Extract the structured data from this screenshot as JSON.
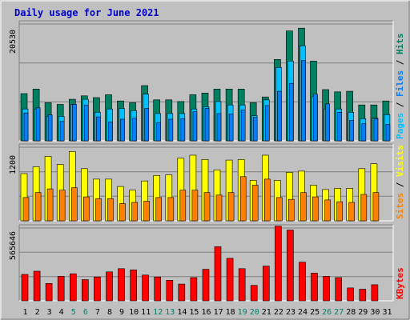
{
  "title": "Daily usage for June 2021",
  "colors": {
    "background": "#c0c0c0",
    "plot": "#c0c0c0",
    "title": "#0000cc",
    "hits": "#008060",
    "files": "#0080ff",
    "pages": "#00c0ff",
    "visits": "#ffff00",
    "sites": "#ff8000",
    "kbytes": "#ff0000",
    "weekend_label": "#00806a",
    "day_label": "#000080"
  },
  "chart_data": [
    {
      "type": "bar",
      "title": "Daily usage for June 2021",
      "panel": "hits-files-pages",
      "categories": [
        "1",
        "2",
        "3",
        "4",
        "5",
        "6",
        "7",
        "8",
        "9",
        "10",
        "11",
        "12",
        "13",
        "14",
        "15",
        "16",
        "17",
        "18",
        "19",
        "20",
        "21",
        "22",
        "23",
        "24",
        "25",
        "26",
        "27",
        "28",
        "29",
        "30",
        "31"
      ],
      "weekend_days": [
        "5",
        "6",
        "12",
        "13",
        "19",
        "20",
        "26",
        "27"
      ],
      "ymax_label": "20530",
      "ylim": [
        0,
        20530
      ],
      "legend": [
        {
          "label": "Hits",
          "color": "#008060"
        },
        {
          "label": "Files",
          "color": "#0080ff"
        },
        {
          "label": "Pages",
          "color": "#00c0ff"
        }
      ],
      "separator": " / ",
      "series": [
        {
          "name": "Hits",
          "values": [
            8300,
            9100,
            6700,
            6400,
            7300,
            7900,
            7600,
            8100,
            7000,
            6700,
            9700,
            7200,
            7200,
            6900,
            8100,
            8400,
            9100,
            9100,
            9100,
            6700,
            7700,
            14300,
            19300,
            19800,
            14000,
            9000,
            8600,
            8700,
            6300,
            6300,
            7000
          ]
        },
        {
          "name": "Files",
          "values": [
            4900,
            5800,
            4600,
            3400,
            6400,
            6300,
            4200,
            3300,
            3800,
            4000,
            5700,
            3200,
            3800,
            3900,
            5100,
            5700,
            4800,
            4700,
            5400,
            4100,
            6200,
            8700,
            10100,
            14100,
            8200,
            6500,
            5000,
            3600,
            3000,
            3900,
            2900
          ]
        },
        {
          "name": "Pages",
          "values": [
            5600,
            5600,
            4300,
            4300,
            6400,
            7300,
            5000,
            5600,
            5700,
            5300,
            8200,
            4800,
            4800,
            4800,
            5600,
            6000,
            6900,
            6300,
            6300,
            4400,
            7200,
            12900,
            14000,
            16700,
            7800,
            5600,
            5600,
            5000,
            3900,
            4000,
            4600
          ]
        }
      ]
    },
    {
      "type": "bar",
      "panel": "visits-sites",
      "categories": [
        "1",
        "2",
        "3",
        "4",
        "5",
        "6",
        "7",
        "8",
        "9",
        "10",
        "11",
        "12",
        "13",
        "14",
        "15",
        "16",
        "17",
        "18",
        "19",
        "20",
        "21",
        "22",
        "23",
        "24",
        "25",
        "26",
        "27",
        "28",
        "29",
        "30",
        "31"
      ],
      "ymax_label": "1200",
      "ylim": [
        0,
        1200
      ],
      "legend": [
        {
          "label": "Visits",
          "color": "#ffff00"
        },
        {
          "label": "Sites",
          "color": "#ff8000"
        }
      ],
      "separator": " / ",
      "series": [
        {
          "name": "Visits",
          "values": [
            770,
            880,
            1050,
            920,
            1130,
            850,
            680,
            680,
            560,
            500,
            650,
            740,
            750,
            1020,
            1070,
            1000,
            830,
            990,
            1000,
            660,
            1070,
            660,
            790,
            810,
            580,
            510,
            530,
            530,
            850,
            930,
            0
          ]
        },
        {
          "name": "Sites",
          "values": [
            380,
            460,
            520,
            500,
            540,
            390,
            360,
            360,
            280,
            300,
            320,
            380,
            380,
            500,
            500,
            460,
            420,
            460,
            720,
            580,
            680,
            380,
            350,
            460,
            390,
            340,
            310,
            300,
            430,
            460,
            0
          ]
        }
      ]
    },
    {
      "type": "bar",
      "panel": "kbytes",
      "categories": [
        "1",
        "2",
        "3",
        "4",
        "5",
        "6",
        "7",
        "8",
        "9",
        "10",
        "11",
        "12",
        "13",
        "14",
        "15",
        "16",
        "17",
        "18",
        "19",
        "20",
        "21",
        "22",
        "23",
        "24",
        "25",
        "26",
        "27",
        "28",
        "29",
        "30",
        "31"
      ],
      "ymax_label": "565646",
      "ylim": [
        0,
        565646
      ],
      "legend": [
        {
          "label": "KBytes",
          "color": "#ff0000"
        }
      ],
      "series": [
        {
          "name": "KBytes",
          "values": [
            205000,
            230000,
            135000,
            190000,
            210000,
            165000,
            185000,
            225000,
            250000,
            240000,
            200000,
            185000,
            160000,
            130000,
            180000,
            245000,
            420000,
            330000,
            250000,
            120000,
            270000,
            580000,
            550000,
            300000,
            215000,
            190000,
            180000,
            100000,
            90000,
            125000,
            0
          ]
        }
      ]
    }
  ]
}
